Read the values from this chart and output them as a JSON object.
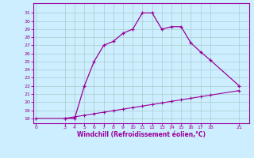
{
  "xlabel": "Windchill (Refroidissement éolien,°C)",
  "bg_color": "#cceeff",
  "line_color": "#990099",
  "grid_color": "#aacccc",
  "curve_x": [
    3,
    4,
    5,
    6,
    7,
    8,
    9,
    10,
    11,
    12,
    13,
    14,
    15,
    16,
    17,
    18,
    21
  ],
  "curve_y": [
    18,
    18,
    22,
    25,
    27,
    27.5,
    28.5,
    29,
    31,
    31,
    29,
    29.3,
    29.3,
    27.3,
    26.2,
    25.2,
    22
  ],
  "line_x": [
    0,
    3,
    4,
    5,
    6,
    7,
    8,
    9,
    10,
    11,
    12,
    13,
    14,
    15,
    16,
    17,
    18,
    21
  ],
  "line_y": [
    18,
    18,
    18.19,
    18.38,
    18.57,
    18.76,
    18.95,
    19.14,
    19.33,
    19.52,
    19.71,
    19.9,
    20.1,
    20.29,
    20.48,
    20.67,
    20.86,
    21.43
  ],
  "xticks": [
    0,
    3,
    4,
    5,
    6,
    7,
    8,
    9,
    10,
    11,
    12,
    13,
    14,
    15,
    16,
    17,
    18,
    21
  ],
  "yticks": [
    18,
    19,
    20,
    21,
    22,
    23,
    24,
    25,
    26,
    27,
    28,
    29,
    30,
    31
  ],
  "xlim": [
    -0.3,
    22.0
  ],
  "ylim": [
    17.4,
    32.2
  ]
}
